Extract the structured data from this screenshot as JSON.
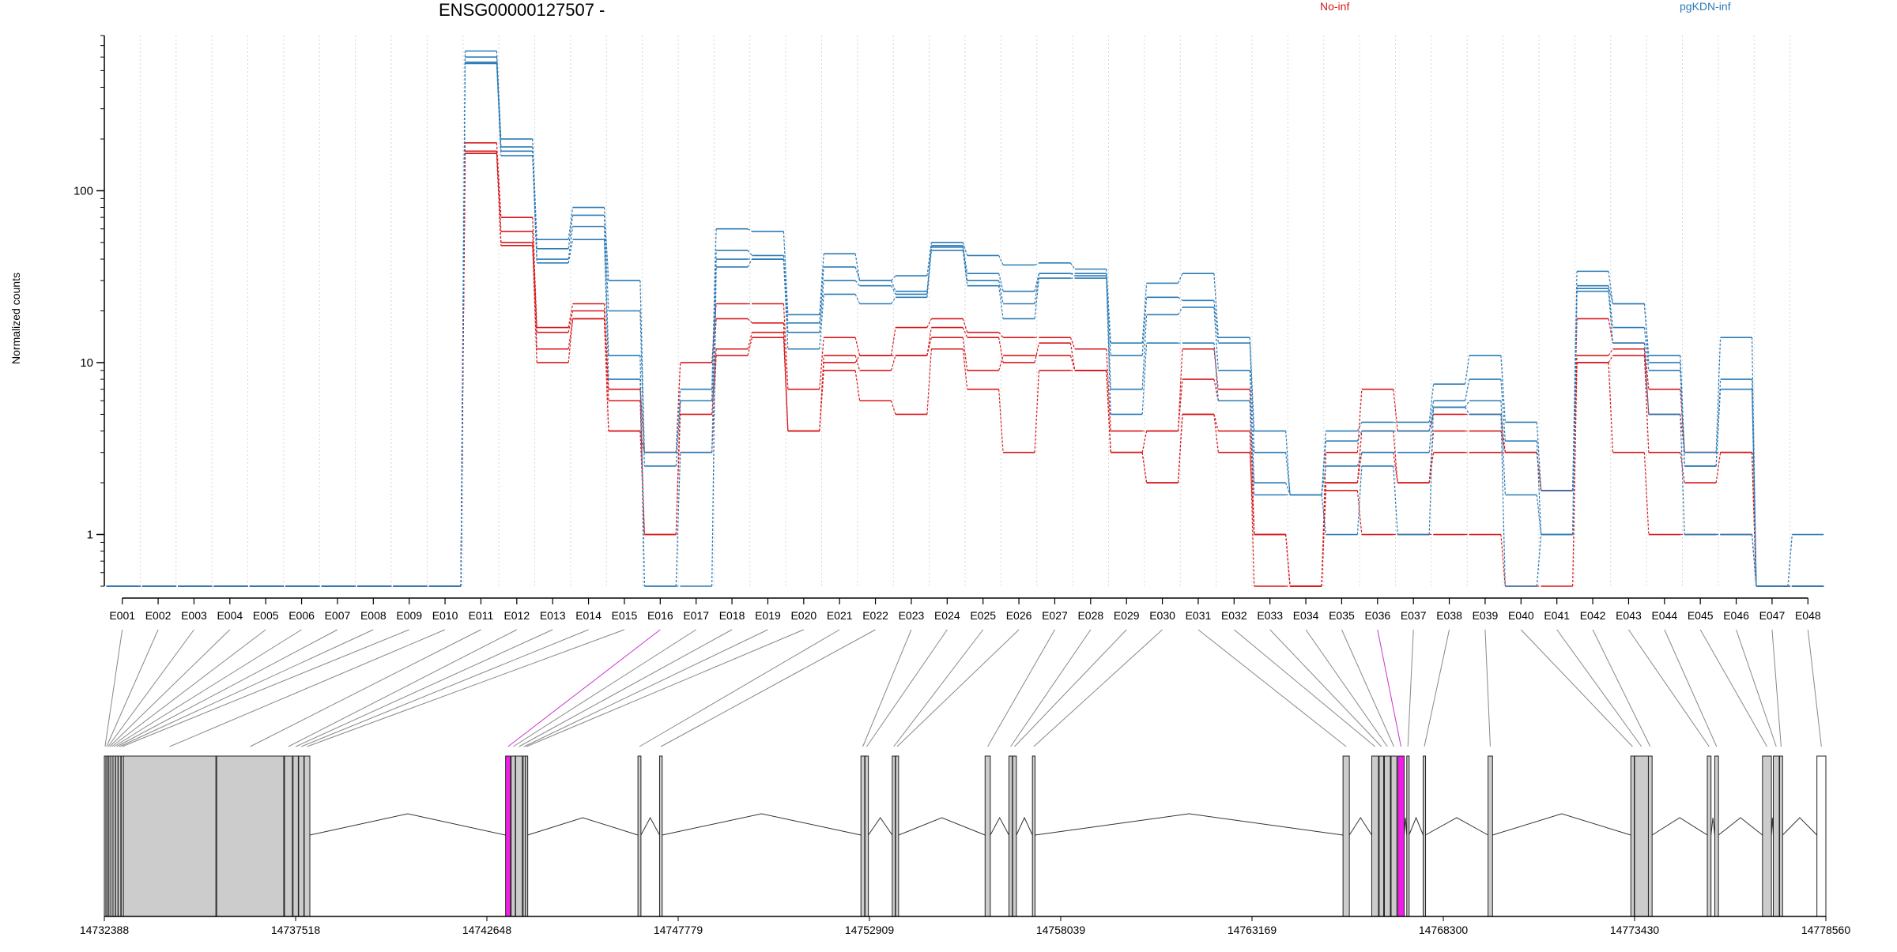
{
  "chart_data": {
    "type": "line",
    "title": "ENSG00000127507 -",
    "ylabel": "Normalized counts",
    "yscale": "log",
    "ylim": [
      0.5,
      800
    ],
    "yticks": [
      1,
      10,
      100
    ],
    "ytick_labels": [
      "1",
      "10",
      "100"
    ],
    "legend_placement": "top",
    "legend": [
      {
        "name": "No-inf",
        "color": "#d7191c"
      },
      {
        "name": "pgKDN-inf",
        "color": "#2c7bb6"
      }
    ],
    "categories": [
      "E001",
      "E002",
      "E003",
      "E004",
      "E005",
      "E006",
      "E007",
      "E008",
      "E009",
      "E010",
      "E011",
      "E012",
      "E013",
      "E014",
      "E015",
      "E016",
      "E017",
      "E018",
      "E019",
      "E020",
      "E021",
      "E022",
      "E023",
      "E024",
      "E025",
      "E026",
      "E027",
      "E028",
      "E029",
      "E030",
      "E031",
      "E032",
      "E033",
      "E034",
      "E035",
      "E036",
      "E037",
      "E038",
      "E039",
      "E040",
      "E041",
      "E042",
      "E043",
      "E044",
      "E045",
      "E046",
      "E047",
      "E048"
    ],
    "highlighted_exons": [
      "E016",
      "E036"
    ],
    "series": [
      {
        "group": "No-inf",
        "color": "#d7191c",
        "values": [
          0.5,
          0.5,
          0.5,
          0.5,
          0.5,
          0.5,
          0.5,
          0.5,
          0.5,
          0.5,
          190,
          70,
          16,
          22,
          7,
          3,
          10,
          22,
          22,
          7,
          14,
          11,
          16,
          18,
          15,
          14,
          14,
          12,
          4,
          4,
          12,
          7,
          1,
          0.5,
          3,
          7,
          4,
          5,
          5,
          3,
          1.8,
          18,
          13,
          7,
          3,
          3,
          0.5,
          0.5
        ]
      },
      {
        "group": "No-inf",
        "color": "#d7191c",
        "values": [
          0.5,
          0.5,
          0.5,
          0.5,
          0.5,
          0.5,
          0.5,
          0.5,
          0.5,
          0.5,
          170,
          58,
          15,
          20,
          6,
          1,
          6,
          18,
          17,
          4,
          11,
          9,
          11,
          16,
          14,
          10,
          13,
          9,
          3,
          4,
          8,
          6,
          1,
          0.5,
          2,
          4,
          2,
          4,
          4,
          3,
          1.8,
          11,
          12,
          5,
          3,
          3,
          0.5,
          0.5
        ]
      },
      {
        "group": "No-inf",
        "color": "#d7191c",
        "values": [
          0.5,
          0.5,
          0.5,
          0.5,
          0.5,
          0.5,
          0.5,
          0.5,
          0.5,
          0.5,
          165,
          50,
          12,
          18,
          4,
          1,
          5,
          12,
          15,
          4,
          10,
          11,
          11,
          14,
          9,
          11,
          11,
          9,
          3,
          2,
          5,
          4,
          0.5,
          0.5,
          2,
          3,
          2,
          3,
          3,
          3,
          1.8,
          10,
          11,
          3,
          2,
          3,
          0.5,
          0.5
        ]
      },
      {
        "group": "No-inf",
        "color": "#d7191c",
        "values": [
          0.5,
          0.5,
          0.5,
          0.5,
          0.5,
          0.5,
          0.5,
          0.5,
          0.5,
          0.5,
          165,
          48,
          10,
          18,
          4,
          3,
          3,
          11,
          14,
          4,
          9,
          6,
          5,
          12,
          7,
          3,
          9,
          9,
          3,
          2,
          5,
          3,
          1,
          0.5,
          1.8,
          1,
          1,
          1,
          1,
          0.5,
          0.5,
          10,
          3,
          1,
          1,
          1,
          0.5,
          0.5
        ]
      },
      {
        "group": "pgKDN-inf",
        "color": "#2c7bb6",
        "values": [
          0.5,
          0.5,
          0.5,
          0.5,
          0.5,
          0.5,
          0.5,
          0.5,
          0.5,
          0.5,
          650,
          200,
          52,
          80,
          30,
          3,
          7,
          60,
          58,
          19,
          43,
          30,
          32,
          50,
          42,
          37,
          38,
          35,
          13,
          29,
          33,
          14,
          4,
          1.7,
          4,
          4.5,
          4.5,
          7.5,
          11,
          4.5,
          1.8,
          34,
          22,
          11,
          3,
          14,
          0.5,
          1
        ]
      },
      {
        "group": "pgKDN-inf",
        "color": "#2c7bb6",
        "values": [
          0.5,
          0.5,
          0.5,
          0.5,
          0.5,
          0.5,
          0.5,
          0.5,
          0.5,
          0.5,
          600,
          180,
          46,
          72,
          20,
          2.5,
          6,
          45,
          42,
          17,
          36,
          30,
          26,
          48,
          33,
          26,
          33,
          33,
          11,
          24,
          23,
          13,
          3,
          1.7,
          3.5,
          4,
          4,
          6,
          8,
          3.5,
          1,
          28,
          22,
          10,
          2.5,
          8,
          0.5,
          0.5
        ]
      },
      {
        "group": "pgKDN-inf",
        "color": "#2c7bb6",
        "values": [
          0.5,
          0.5,
          0.5,
          0.5,
          0.5,
          0.5,
          0.5,
          0.5,
          0.5,
          0.5,
          560,
          170,
          40,
          62,
          11,
          0.5,
          3,
          40,
          40,
          15,
          30,
          28,
          25,
          47,
          30,
          22,
          33,
          32,
          7,
          19,
          21,
          9,
          2,
          1.7,
          2.5,
          3,
          3,
          5.5,
          6,
          1.7,
          1,
          27,
          16,
          9,
          2.5,
          7,
          0.5,
          0.5
        ]
      },
      {
        "group": "pgKDN-inf",
        "color": "#2c7bb6",
        "values": [
          0.5,
          0.5,
          0.5,
          0.5,
          0.5,
          0.5,
          0.5,
          0.5,
          0.5,
          0.5,
          550,
          160,
          38,
          52,
          8,
          0.5,
          0.5,
          36,
          40,
          12,
          25,
          22,
          24,
          45,
          28,
          18,
          31,
          31,
          5,
          13,
          13,
          6,
          1.7,
          1.7,
          1,
          2.5,
          1,
          5.5,
          5,
          0.5,
          1,
          26,
          13,
          5,
          1,
          1,
          0.5,
          0.5
        ]
      }
    ],
    "gene_axis_ticks": [
      "14732388",
      "14737518",
      "14742648",
      "14747779",
      "14752909",
      "14758039",
      "14763169",
      "14768300",
      "14773430",
      "14778560"
    ],
    "exon_genomic_start": [
      14732388,
      14732430,
      14732470,
      14732510,
      14732560,
      14732620,
      14732690,
      14732760,
      14732840,
      14732900,
      14735400,
      14737220,
      14737450,
      14737600,
      14737750,
      14743150,
      14743300,
      14743420,
      14743620,
      14743680,
      14746700,
      14747280,
      14752680,
      14752790,
      14753520,
      14753610,
      14756010,
      14756650,
      14756750,
      14757280,
      14765610,
      14766380,
      14766580,
      14766720,
      14766900,
      14767080,
      14767320,
      14767760,
      14769500,
      14773330,
      14773430,
      14773800,
      14775380,
      14775580,
      14776860,
      14777150,
      14777320,
      14778320
    ],
    "exon_genomic_end": [
      14732425,
      14732465,
      14732505,
      14732550,
      14732610,
      14732680,
      14732750,
      14732830,
      14732890,
      14735380,
      14737200,
      14737430,
      14737590,
      14737740,
      14737900,
      14743280,
      14743410,
      14743600,
      14743670,
      14743740,
      14746780,
      14747350,
      14752780,
      14752880,
      14753600,
      14753690,
      14756150,
      14756740,
      14756850,
      14757350,
      14765780,
      14766560,
      14766700,
      14766880,
      14767050,
      14767250,
      14767380,
      14767820,
      14769620,
      14773420,
      14773800,
      14773900,
      14775480,
      14775680,
      14777100,
      14777310,
      14777400,
      14778560
    ]
  }
}
